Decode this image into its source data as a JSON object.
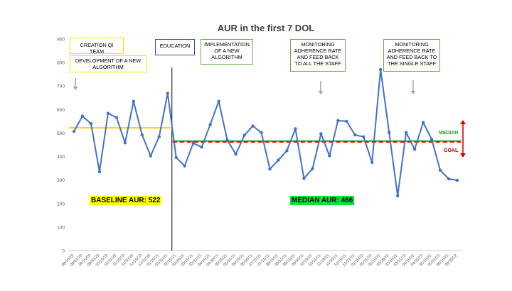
{
  "chart_data": {
    "type": "line",
    "title": "AUR in the first 7 DOL",
    "xlabel": "",
    "ylabel": "",
    "ylim": [
      0,
      900
    ],
    "yticks": [
      0,
      100,
      200,
      300,
      400,
      500,
      600,
      700,
      800,
      900
    ],
    "categories": [
      "08/15/20",
      "09/01/20",
      "09/15/20",
      "09/30/20",
      "10/15/20",
      "10/31/20",
      "11/15/20",
      "11/30/20",
      "12/15/20",
      "12/31/20",
      "01/15/21",
      "01/31/21",
      "02/15/21",
      "02/28/21",
      "03/15/21",
      "03/31/21",
      "04/15/21",
      "04/30/21",
      "05/15/21",
      "05/31/21",
      "06/15/21",
      "06/30/21",
      "07/15/21",
      "07/31/21",
      "08/15/21",
      "08/31/21",
      "09/15/21",
      "09/30/21",
      "10/15/21",
      "10/31/21",
      "11/15/21",
      "11/30/21",
      "12/15/21",
      "12/31/21",
      "01/15/22",
      "01/31/22",
      "02/15/22",
      "02/28/22",
      "03/15/22",
      "03/31/22",
      "04/15/22",
      "04/30/22",
      "05/15/22",
      "05/31/22",
      "06/15/22",
      "06/30/22"
    ],
    "series": [
      {
        "values": [
          507,
          572,
          540,
          335,
          584,
          566,
          458,
          635,
          492,
          403,
          484,
          669,
          396,
          360,
          457,
          440,
          536,
          635,
          470,
          410,
          490,
          530,
          502,
          347,
          385,
          425,
          518,
          307,
          348,
          497,
          403,
          553,
          550,
          492,
          484,
          375,
          770,
          502,
          233,
          502,
          431,
          545,
          473,
          342,
          305,
          299
        ]
      }
    ],
    "baseline": {
      "value": 522,
      "label": "BASELINE AUR: 522",
      "color": "#ffc000"
    },
    "median": {
      "value": 466,
      "label": "MEDIAN AUR: 466",
      "marker": "MEDIAN",
      "color": "#2e9e2e"
    },
    "goal": {
      "value": 462,
      "marker": "GOAL",
      "color": "#ff0000"
    },
    "line_color": "#4472c4",
    "grid": false,
    "annotations": [
      {
        "id": "creation",
        "text": "CREATION QI TEAM",
        "color": "#f2e200"
      },
      {
        "id": "algorithm",
        "text": "DEVELOPMENT OF A NEW ALGORITHM",
        "color": "#f2e200"
      },
      {
        "id": "education",
        "text": "EDUCATION",
        "color": "#2f5597"
      },
      {
        "id": "implementation",
        "text": "IMPLEMENTATION OF A NEW ALGORITHM",
        "color": "#70ad47"
      },
      {
        "id": "monitor-all",
        "text": "MONITORING ADHERENCE RATE AND FEED BACK TO ALL THE STAFF",
        "color": "#70ad47"
      },
      {
        "id": "monitor-single",
        "text": "MONITORING ADHERENCE RATE AND FEED BACK TO THE SINGLE STAFF",
        "color": "#70ad47"
      }
    ]
  }
}
